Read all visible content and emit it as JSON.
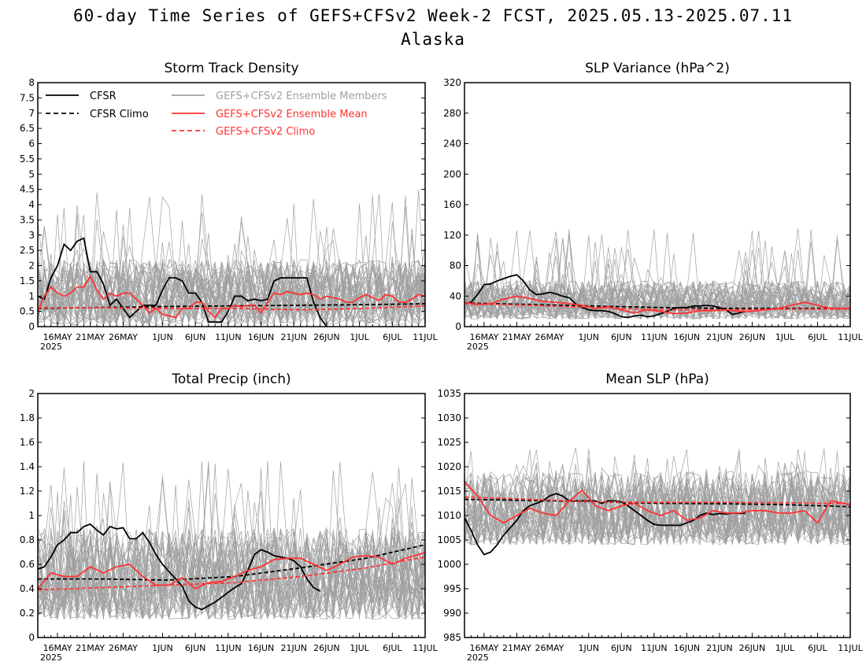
{
  "header": {
    "title": "60-day Time Series of GEFS+CFSv2 Week-2 FCST, 2025.05.13-2025.07.11",
    "subtitle": "Alaska"
  },
  "colors": {
    "obs": "#000000",
    "members": "#a0a0a0",
    "mean": "#ff3333",
    "background": "#ffffff"
  },
  "x_axis": {
    "tick_labels": [
      "16MAY",
      "21MAY",
      "26MAY",
      "1JUN",
      "6JUN",
      "11JUN",
      "16JUN",
      "21JUN",
      "26JUN",
      "1JUL",
      "6JUL",
      "11JUL"
    ],
    "tick_days": [
      3,
      8,
      13,
      19,
      24,
      29,
      34,
      39,
      44,
      49,
      54,
      59
    ],
    "year_label": "2025",
    "day_range": [
      0,
      59
    ]
  },
  "legend": {
    "items": [
      {
        "label": "CFSR",
        "style": "solid",
        "color": "#000000"
      },
      {
        "label": "CFSR Climo",
        "style": "dashed",
        "color": "#000000"
      },
      {
        "label": "GEFS+CFSv2 Ensemble Members",
        "style": "solid",
        "color": "#a0a0a0"
      },
      {
        "label": "GEFS+CFSv2 Ensemble Mean",
        "style": "solid",
        "color": "#ff3333"
      },
      {
        "label": "GEFS+CFSv2 Climo",
        "style": "dashed",
        "color": "#ff3333"
      }
    ]
  },
  "chart_data": [
    {
      "type": "line",
      "title": "Storm Track Density",
      "ylim": [
        0,
        8
      ],
      "yticks": [
        "0",
        "0.5",
        "1",
        "1.5",
        "2",
        "2.5",
        "3",
        "3.5",
        "4",
        "4.5",
        "5",
        "5.5",
        "6",
        "6.5",
        "7",
        "7.5",
        "8"
      ],
      "ensemble": {
        "center": 0.8,
        "low": 0.05,
        "high": 2.2,
        "peak": 4.5
      },
      "series": [
        {
          "name": "CFSR",
          "style": "solid",
          "color": "#000000",
          "x": [
            0,
            1,
            2,
            3,
            4,
            5,
            6,
            7,
            8,
            9,
            10,
            11,
            12,
            13,
            14,
            15,
            16,
            17,
            18,
            19,
            20,
            21,
            22,
            23,
            24,
            25,
            26,
            27,
            28,
            29,
            30,
            31,
            32,
            33,
            34,
            35,
            36,
            37,
            38,
            39,
            40,
            41,
            42,
            43,
            44
          ],
          "y": [
            1.0,
            0.9,
            1.6,
            2.0,
            2.7,
            2.5,
            2.8,
            2.9,
            1.8,
            1.8,
            1.4,
            0.7,
            0.9,
            0.6,
            0.3,
            0.5,
            0.7,
            0.7,
            0.7,
            1.2,
            1.6,
            1.6,
            1.5,
            1.1,
            1.1,
            0.8,
            0.15,
            0.15,
            0.15,
            0.5,
            1.0,
            1.0,
            0.85,
            0.9,
            0.85,
            0.9,
            1.5,
            1.6,
            1.6,
            1.6,
            1.6,
            1.6,
            0.8,
            0.3,
            0.0
          ]
        },
        {
          "name": "CFSR Climo",
          "style": "dashed",
          "color": "#000000",
          "x": [
            0,
            10,
            20,
            30,
            40,
            50,
            59
          ],
          "y": [
            0.6,
            0.63,
            0.66,
            0.68,
            0.7,
            0.72,
            0.75
          ]
        },
        {
          "name": "GEFS+CFSv2 Ensemble Mean",
          "style": "solid",
          "color": "#ff3333",
          "x": [
            0,
            1,
            2,
            3,
            4,
            5,
            6,
            7,
            8,
            9,
            10,
            11,
            12,
            13,
            14,
            15,
            16,
            17,
            18,
            19,
            20,
            21,
            22,
            23,
            24,
            25,
            26,
            27,
            28,
            29,
            30,
            31,
            32,
            33,
            34,
            35,
            36,
            37,
            38,
            39,
            40,
            41,
            42,
            43,
            44,
            45,
            46,
            47,
            48,
            49,
            50,
            51,
            52,
            53,
            54,
            55,
            56,
            57,
            58,
            59
          ],
          "y": [
            0.5,
            1.0,
            1.3,
            1.1,
            1.0,
            1.1,
            1.3,
            1.3,
            1.65,
            1.2,
            0.9,
            1.1,
            1.0,
            1.1,
            1.1,
            0.9,
            0.7,
            0.45,
            0.6,
            0.4,
            0.35,
            0.3,
            0.6,
            0.6,
            0.8,
            0.8,
            0.5,
            0.3,
            0.6,
            0.6,
            0.7,
            0.65,
            0.7,
            0.7,
            0.45,
            0.8,
            1.1,
            1.05,
            1.15,
            1.1,
            1.05,
            1.1,
            1.05,
            0.9,
            1.0,
            0.95,
            0.9,
            0.8,
            0.8,
            0.95,
            1.05,
            0.95,
            0.85,
            1.05,
            1.0,
            0.8,
            0.8,
            0.9,
            1.05,
            1.0
          ]
        },
        {
          "name": "GEFS+CFSv2 Climo",
          "style": "dashed",
          "color": "#ff3333",
          "x": [
            0,
            10,
            20,
            30,
            40,
            50,
            59
          ],
          "y": [
            0.62,
            0.62,
            0.6,
            0.6,
            0.55,
            0.6,
            0.68
          ]
        }
      ]
    },
    {
      "type": "line",
      "title": "SLP Variance (hPa^2)",
      "ylim": [
        0,
        320
      ],
      "yticks": [
        "0",
        "40",
        "80",
        "120",
        "160",
        "200",
        "240",
        "280",
        "320"
      ],
      "ensemble": {
        "center": 28,
        "low": 10,
        "high": 60,
        "peak": 130
      },
      "series": [
        {
          "name": "CFSR",
          "style": "solid",
          "color": "#000000",
          "x": [
            0,
            1,
            2,
            3,
            4,
            5,
            6,
            7,
            8,
            9,
            10,
            11,
            12,
            13,
            14,
            15,
            16,
            17,
            18,
            19,
            20,
            21,
            22,
            23,
            24,
            25,
            26,
            27,
            28,
            29,
            30,
            31,
            32,
            33,
            34,
            35,
            36,
            37,
            38,
            39,
            40,
            41,
            42,
            43
          ],
          "y": [
            30,
            32,
            42,
            55,
            56,
            60,
            63,
            66,
            68,
            60,
            48,
            42,
            43,
            45,
            43,
            40,
            38,
            30,
            25,
            22,
            21,
            21,
            20,
            17,
            13,
            12,
            14,
            15,
            13,
            14,
            17,
            20,
            24,
            25,
            25,
            27,
            27,
            28,
            27,
            25,
            22,
            16,
            18,
            20
          ]
        },
        {
          "name": "CFSR Climo",
          "style": "dashed",
          "color": "#000000",
          "x": [
            0,
            10,
            20,
            30,
            40,
            50,
            59
          ],
          "y": [
            31,
            29,
            27,
            25,
            24,
            24,
            24
          ]
        },
        {
          "name": "GEFS+CFSv2 Ensemble Mean",
          "style": "solid",
          "color": "#ff3333",
          "x": [
            0,
            2,
            4,
            6,
            8,
            10,
            12,
            14,
            16,
            18,
            20,
            22,
            24,
            26,
            28,
            30,
            32,
            34,
            36,
            38,
            40,
            42,
            44,
            46,
            48,
            50,
            52,
            54,
            56,
            58,
            59
          ],
          "y": [
            32,
            29,
            30,
            36,
            40,
            37,
            33,
            32,
            30,
            28,
            24,
            26,
            22,
            18,
            22,
            20,
            17,
            18,
            21,
            21,
            22,
            20,
            20,
            22,
            24,
            28,
            32,
            28,
            24,
            24,
            24
          ]
        },
        {
          "name": "GEFS+CFSv2 Climo",
          "style": "dashed",
          "color": "#ff3333",
          "x": [
            0,
            10,
            20,
            30,
            40,
            50,
            59
          ],
          "y": [
            30,
            28,
            25,
            22,
            22,
            23,
            23
          ]
        }
      ]
    },
    {
      "type": "line",
      "title": "Total Precip (inch)",
      "ylim": [
        0,
        2
      ],
      "yticks": [
        "0",
        "0.2",
        "0.4",
        "0.6",
        "0.8",
        "1",
        "1.2",
        "1.4",
        "1.6",
        "1.8",
        "2"
      ],
      "ensemble": {
        "center": 0.5,
        "low": 0.15,
        "high": 0.9,
        "peak": 1.45
      },
      "series": [
        {
          "name": "CFSR",
          "style": "solid",
          "color": "#000000",
          "x": [
            0,
            1,
            2,
            3,
            4,
            5,
            6,
            7,
            8,
            9,
            10,
            11,
            12,
            13,
            14,
            15,
            16,
            17,
            18,
            19,
            20,
            21,
            22,
            23,
            24,
            25,
            26,
            27,
            28,
            29,
            30,
            31,
            32,
            33,
            34,
            35,
            36,
            37,
            38,
            39,
            40,
            41,
            42,
            43
          ],
          "y": [
            0.56,
            0.58,
            0.66,
            0.76,
            0.8,
            0.86,
            0.86,
            0.91,
            0.93,
            0.88,
            0.84,
            0.91,
            0.89,
            0.9,
            0.81,
            0.81,
            0.86,
            0.78,
            0.68,
            0.6,
            0.54,
            0.48,
            0.42,
            0.3,
            0.25,
            0.23,
            0.26,
            0.29,
            0.33,
            0.37,
            0.41,
            0.44,
            0.55,
            0.68,
            0.72,
            0.7,
            0.67,
            0.66,
            0.65,
            0.63,
            0.58,
            0.48,
            0.41,
            0.38
          ]
        },
        {
          "name": "CFSR Climo",
          "style": "dashed",
          "color": "#000000",
          "x": [
            0,
            10,
            20,
            30,
            40,
            50,
            59
          ],
          "y": [
            0.48,
            0.48,
            0.47,
            0.5,
            0.57,
            0.65,
            0.76
          ]
        },
        {
          "name": "GEFS+CFSv2 Ensemble Mean",
          "style": "solid",
          "color": "#ff3333",
          "x": [
            0,
            2,
            4,
            6,
            8,
            10,
            12,
            14,
            16,
            18,
            20,
            22,
            24,
            26,
            28,
            30,
            32,
            34,
            36,
            38,
            40,
            42,
            44,
            46,
            48,
            50,
            52,
            54,
            56,
            58,
            59
          ],
          "y": [
            0.4,
            0.53,
            0.5,
            0.5,
            0.58,
            0.53,
            0.58,
            0.6,
            0.5,
            0.43,
            0.43,
            0.49,
            0.4,
            0.45,
            0.46,
            0.5,
            0.55,
            0.58,
            0.64,
            0.65,
            0.65,
            0.6,
            0.55,
            0.6,
            0.66,
            0.67,
            0.66,
            0.6,
            0.65,
            0.68,
            0.7
          ]
        },
        {
          "name": "GEFS+CFSv2 Climo",
          "style": "dashed",
          "color": "#ff3333",
          "x": [
            0,
            10,
            20,
            30,
            40,
            50,
            59
          ],
          "y": [
            0.39,
            0.41,
            0.43,
            0.45,
            0.5,
            0.57,
            0.66
          ]
        }
      ]
    },
    {
      "type": "line",
      "title": "Mean SLP (hPa)",
      "ylim": [
        985,
        1035
      ],
      "yticks": [
        "985",
        "990",
        "995",
        "1000",
        "1005",
        "1010",
        "1015",
        "1020",
        "1025",
        "1030",
        "1035"
      ],
      "ensemble": {
        "center": 1012,
        "low": 1004,
        "high": 1019,
        "peak": 1024
      },
      "series": [
        {
          "name": "CFSR",
          "style": "solid",
          "color": "#000000",
          "x": [
            0,
            1,
            2,
            3,
            4,
            5,
            6,
            7,
            8,
            9,
            10,
            11,
            12,
            13,
            14,
            15,
            16,
            17,
            18,
            19,
            20,
            21,
            22,
            23,
            24,
            25,
            26,
            27,
            28,
            29,
            30,
            31,
            32,
            33,
            34,
            35,
            36,
            37,
            38,
            39,
            40,
            41,
            42,
            43
          ],
          "y": [
            1009.5,
            1007,
            1004,
            1002,
            1002.5,
            1004,
            1006,
            1007.5,
            1009,
            1011,
            1012,
            1012.5,
            1013,
            1014,
            1014.5,
            1014,
            1013,
            1013,
            1013,
            1013,
            1013,
            1012.5,
            1013,
            1013,
            1012.8,
            1012,
            1011,
            1010,
            1009,
            1008.2,
            1008,
            1008,
            1008,
            1008,
            1008.5,
            1009,
            1010,
            1010.5,
            1010.2,
            1010.4,
            1010.3,
            1010.5,
            1010.4,
            1010.5
          ]
        },
        {
          "name": "CFSR Climo",
          "style": "dashed",
          "color": "#000000",
          "x": [
            0,
            10,
            20,
            30,
            40,
            50,
            59
          ],
          "y": [
            1013.3,
            1013.1,
            1012.8,
            1012.5,
            1012.4,
            1012.2,
            1011.8
          ]
        },
        {
          "name": "GEFS+CFSv2 Ensemble Mean",
          "style": "solid",
          "color": "#ff3333",
          "x": [
            0,
            2,
            4,
            6,
            8,
            10,
            12,
            14,
            16,
            18,
            20,
            22,
            24,
            26,
            28,
            30,
            32,
            34,
            36,
            38,
            40,
            42,
            44,
            46,
            48,
            50,
            52,
            54,
            56,
            58,
            59
          ],
          "y": [
            1017,
            1014,
            1010,
            1008.5,
            1010,
            1011.5,
            1010.5,
            1010,
            1013,
            1015.2,
            1012,
            1011,
            1012,
            1012.5,
            1011,
            1010,
            1011,
            1009,
            1009.5,
            1011,
            1010.5,
            1010.5,
            1011,
            1011,
            1010.5,
            1010.5,
            1011,
            1008.5,
            1013,
            1012.5,
            1012.2
          ]
        },
        {
          "name": "GEFS+CFSv2 Climo",
          "style": "dashed",
          "color": "#ff3333",
          "x": [
            0,
            10,
            20,
            30,
            40,
            50,
            59
          ],
          "y": [
            1013.8,
            1013.3,
            1012.8,
            1012.7,
            1012.7,
            1012.6,
            1012.4
          ]
        }
      ]
    }
  ]
}
